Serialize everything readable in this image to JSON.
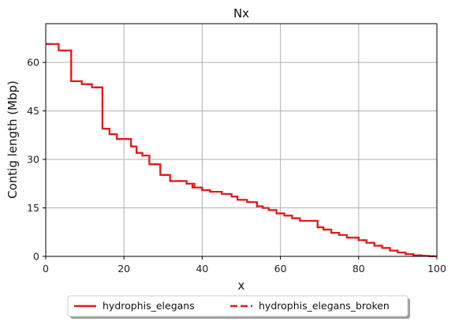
{
  "colors": {
    "series": "#e31a1c",
    "grid": "#b0b0b0",
    "axis": "#000000"
  },
  "chart_data": {
    "type": "line",
    "title": "Nx",
    "xlabel": "x",
    "ylabel": "Contig length (Mbp)",
    "xlim": [
      0,
      100
    ],
    "ylim": [
      0,
      72
    ],
    "xticks": [
      0,
      20,
      40,
      60,
      80,
      100
    ],
    "yticks": [
      0,
      15,
      30,
      45,
      60
    ],
    "grid": true,
    "legend_position": "bottom-center",
    "series": [
      {
        "name": "hydrophis_elegans",
        "style": "solid",
        "x": [
          0,
          3.3,
          3.3,
          6.5,
          6.5,
          9.2,
          9.2,
          11.8,
          11.8,
          14.5,
          14.5,
          16.3,
          16.3,
          18.2,
          18.2,
          21.8,
          21.8,
          23.2,
          23.2,
          24.7,
          24.7,
          26.5,
          26.5,
          29.3,
          29.3,
          31.8,
          31.8,
          36.0,
          36.0,
          38.0,
          38.0,
          40.0,
          40.0,
          42.0,
          42.0,
          45.0,
          45.0,
          47.5,
          47.5,
          49.0,
          49.0,
          51.5,
          51.5,
          54.0,
          54.0,
          55.5,
          55.5,
          57.0,
          57.0,
          59.0,
          59.0,
          61.0,
          61.0,
          63.0,
          63.0,
          65.0,
          65.0,
          69.5,
          69.5,
          71.0,
          71.0,
          73.0,
          73.0,
          75.0,
          75.0,
          77.0,
          77.0,
          80.0,
          80.0,
          82.0,
          82.0,
          84.0,
          84.0,
          86.0,
          86.0,
          88.0,
          88.0,
          90.0,
          90.0,
          92.0,
          92.0,
          94.0,
          94.0,
          96.0,
          96.0,
          98.0,
          98.0,
          100
        ],
        "y": [
          65.7,
          65.7,
          63.7,
          63.7,
          54.2,
          54.2,
          53.3,
          53.3,
          52.3,
          52.3,
          39.5,
          39.5,
          37.8,
          37.8,
          36.3,
          36.3,
          34.0,
          34.0,
          32.0,
          32.0,
          31.2,
          31.2,
          28.5,
          28.5,
          25.2,
          25.2,
          23.3,
          23.3,
          22.5,
          22.5,
          21.3,
          21.3,
          20.5,
          20.5,
          20.0,
          20.0,
          19.3,
          19.3,
          18.5,
          18.5,
          17.5,
          17.5,
          16.8,
          16.8,
          15.5,
          15.5,
          15.0,
          15.0,
          14.3,
          14.3,
          13.3,
          13.3,
          12.6,
          12.6,
          11.8,
          11.8,
          11.0,
          11.0,
          9.0,
          9.0,
          8.3,
          8.3,
          7.3,
          7.3,
          6.6,
          6.6,
          5.8,
          5.8,
          5.0,
          5.0,
          4.2,
          4.2,
          3.3,
          3.3,
          2.6,
          2.6,
          1.8,
          1.8,
          1.2,
          1.2,
          0.7,
          0.7,
          0.35,
          0.35,
          0.15,
          0.15,
          0.05,
          0.05
        ]
      },
      {
        "name": "hydrophis_elegans_broken",
        "style": "dashed",
        "x": [
          0,
          3.3,
          3.3,
          6.5,
          6.5,
          9.2,
          9.2,
          11.8,
          11.8,
          14.5,
          14.5,
          16.3,
          16.3,
          18.2,
          18.2,
          21.8,
          21.8,
          23.2,
          23.2,
          24.7,
          24.7,
          26.5,
          26.5,
          29.3,
          29.3,
          31.8,
          31.8,
          36.0,
          36.0,
          37.5,
          37.5,
          38.0,
          38.0,
          40.0,
          40.0,
          42.0,
          42.0,
          45.0,
          45.0,
          47.5,
          47.5,
          49.0,
          49.0,
          51.5,
          51.5,
          54.0,
          54.0,
          55.5,
          55.5,
          57.0,
          57.0,
          59.0,
          59.0,
          61.0,
          61.0,
          63.0,
          63.0,
          65.0,
          65.0,
          69.5,
          69.5,
          71.0,
          71.0,
          73.0,
          73.0,
          75.0,
          75.0,
          77.0,
          77.0,
          80.0,
          80.0,
          82.0,
          82.0,
          84.0,
          84.0,
          86.0,
          86.0,
          88.0,
          88.0,
          90.0,
          90.0,
          92.0,
          92.0,
          94.0,
          94.0,
          96.0,
          96.0,
          98.0,
          98.0,
          100
        ],
        "y": [
          65.7,
          65.7,
          63.7,
          63.7,
          54.2,
          54.2,
          53.3,
          53.3,
          52.3,
          52.3,
          39.5,
          39.5,
          37.8,
          37.8,
          36.3,
          36.3,
          34.0,
          34.0,
          32.0,
          32.0,
          31.2,
          31.2,
          28.5,
          28.5,
          25.2,
          25.2,
          23.3,
          23.3,
          22.5,
          22.5,
          21.3,
          21.3,
          21.3,
          21.3,
          20.5,
          20.5,
          20.0,
          20.0,
          19.3,
          19.3,
          18.5,
          18.5,
          17.5,
          17.5,
          16.8,
          16.8,
          15.5,
          15.5,
          15.0,
          15.0,
          14.3,
          14.3,
          13.3,
          13.3,
          12.6,
          12.6,
          11.8,
          11.8,
          11.0,
          11.0,
          9.0,
          9.0,
          8.3,
          8.3,
          7.3,
          7.3,
          6.6,
          6.6,
          5.8,
          5.8,
          5.0,
          5.0,
          4.2,
          4.2,
          3.3,
          3.3,
          2.6,
          2.6,
          1.8,
          1.8,
          1.2,
          1.2,
          0.7,
          0.7,
          0.35,
          0.35,
          0.15,
          0.15,
          0.05,
          0.05
        ]
      }
    ]
  }
}
